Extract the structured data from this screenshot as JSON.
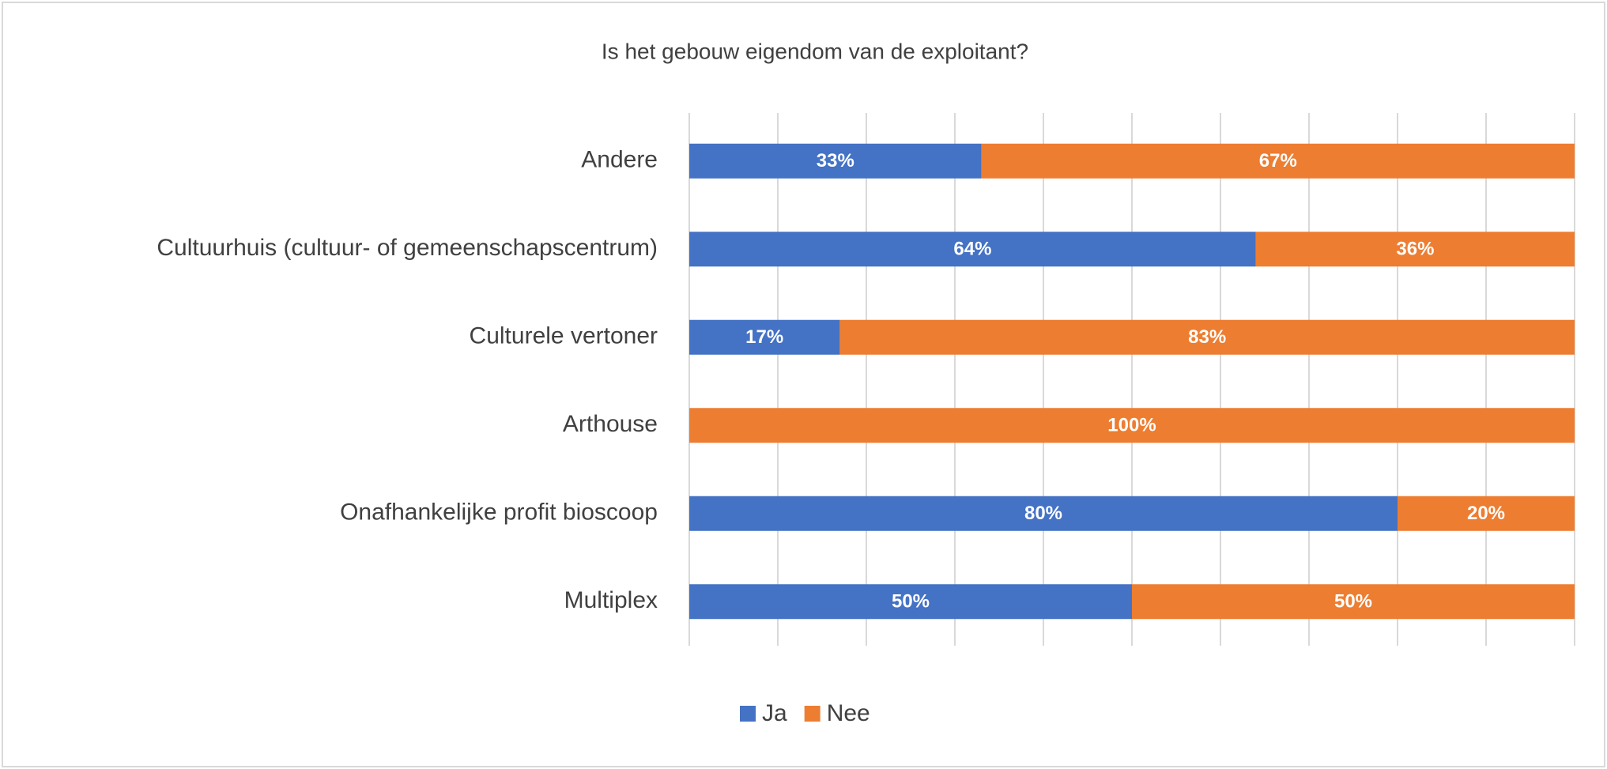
{
  "chart_data": {
    "type": "stacked_barh",
    "title": "Is het gebouw eigendom van de exploitant?",
    "categories": [
      "Andere",
      "Cultuurhuis (cultuur- of gemeenschapscentrum)",
      "Culturele vertoner",
      "Arthouse",
      "Onafhankelijke profit bioscoop",
      "Multiplex"
    ],
    "series": [
      {
        "name": "Ja",
        "color": "#4472c4",
        "values": [
          33,
          64,
          17,
          0,
          80,
          50
        ],
        "value_labels": [
          "33%",
          "64%",
          "17%",
          null,
          "80%",
          "50%"
        ]
      },
      {
        "name": "Nee",
        "color": "#ed7d31",
        "values": [
          67,
          36,
          83,
          100,
          20,
          50
        ],
        "value_labels": [
          "67%",
          "36%",
          "83%",
          "100%",
          "20%",
          "50%"
        ]
      }
    ],
    "xlim": [
      0,
      100
    ],
    "xticks": [
      0,
      10,
      20,
      30,
      40,
      50,
      60,
      70,
      80,
      90,
      100
    ],
    "grid": true,
    "legend": "bottom"
  }
}
